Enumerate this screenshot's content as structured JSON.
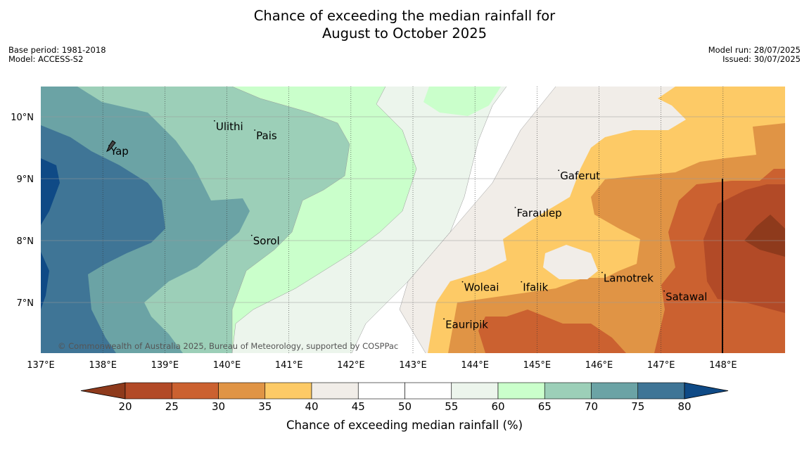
{
  "title_line1": "Chance of exceeding the median rainfall for",
  "title_line2": "August to October 2025",
  "meta": {
    "base_period": "Base period: 1981-2018",
    "model": "Model: ACCESS-S2",
    "model_run": "Model run: 28/07/2025",
    "issued": "Issued: 30/07/2025"
  },
  "copyright": "© Commonwealth of Australia 2025, Bureau of Meteorology, supported by COSPPac",
  "axes": {
    "lon_ticks": [
      "137°E",
      "138°E",
      "139°E",
      "140°E",
      "141°E",
      "142°E",
      "143°E",
      "144°E",
      "145°E",
      "146°E",
      "147°E",
      "148°E"
    ],
    "lat_ticks": [
      "10°N",
      "9°N",
      "8°N",
      "7°N"
    ]
  },
  "places": [
    {
      "name": "Ulithi",
      "lon": 139.8,
      "lat": 9.9
    },
    {
      "name": "Pais",
      "lon": 140.45,
      "lat": 9.75
    },
    {
      "name": "Yap",
      "lon": 138.1,
      "lat": 9.5
    },
    {
      "name": "Gaferut",
      "lon": 145.35,
      "lat": 9.1
    },
    {
      "name": "Faraulep",
      "lon": 144.65,
      "lat": 8.5
    },
    {
      "name": "Sorol",
      "lon": 140.4,
      "lat": 8.05
    },
    {
      "name": "Lamotrek",
      "lon": 146.05,
      "lat": 7.45
    },
    {
      "name": "Woleai",
      "lon": 143.8,
      "lat": 7.3
    },
    {
      "name": "Ifalik",
      "lon": 144.75,
      "lat": 7.3
    },
    {
      "name": "Satawal",
      "lon": 147.05,
      "lat": 7.15
    },
    {
      "name": "Eauripik",
      "lon": 143.5,
      "lat": 6.7
    }
  ],
  "legend": {
    "title": "Chance of exceeding median rainfall (%)",
    "ticks": [
      "20",
      "25",
      "30",
      "35",
      "40",
      "45",
      "50",
      "55",
      "60",
      "65",
      "70",
      "75",
      "80"
    ],
    "colors": [
      "#8e3a1c",
      "#b24a27",
      "#cb6130",
      "#e09445",
      "#fdca66",
      "#f1ede8",
      "#ffffff",
      "#ffffff",
      "#ecf5ec",
      "#caffcb",
      "#9ccfb8",
      "#6ba3a5",
      "#3f7596",
      "#0f4a86"
    ]
  }
}
